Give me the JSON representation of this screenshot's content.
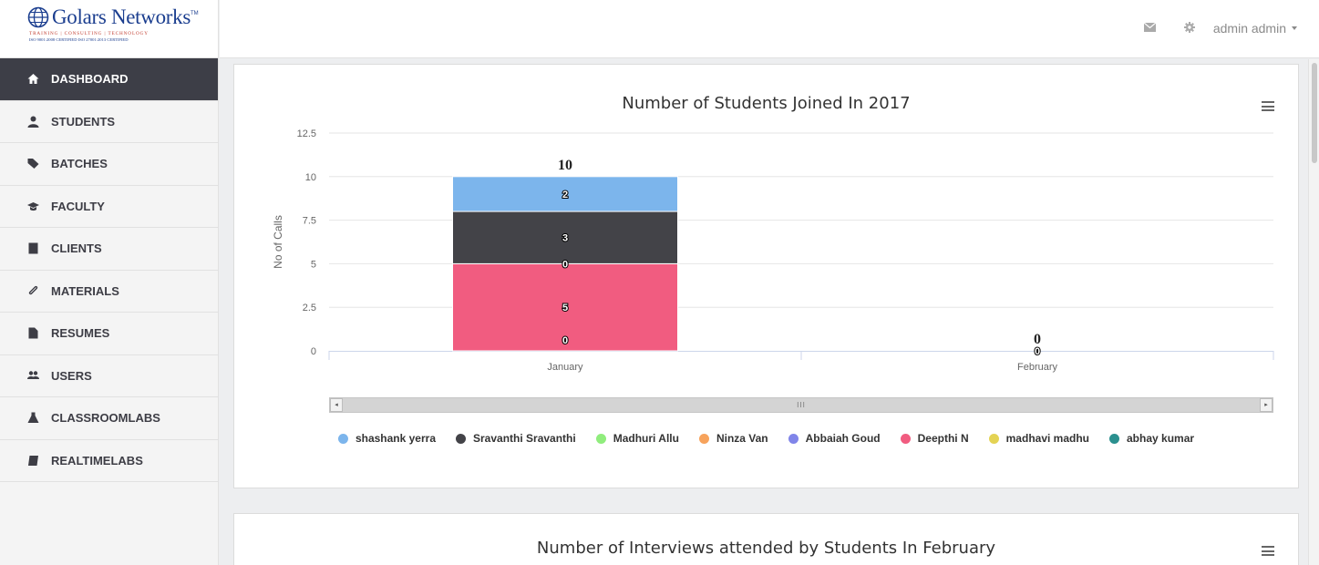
{
  "brand": {
    "name": "Golars Networks",
    "tm": "TM",
    "tagline": "TRAINING | CONSULTING | TECHNOLOGY",
    "iso": "ISO 9001:2008 CERTIFIED    ISO 27001:2013 CERTIFIED"
  },
  "nav": [
    {
      "label": "DASHBOARD",
      "icon": "home-icon",
      "active": true
    },
    {
      "label": "STUDENTS",
      "icon": "user-icon",
      "active": false
    },
    {
      "label": "BATCHES",
      "icon": "tags-icon",
      "active": false
    },
    {
      "label": "FACULTY",
      "icon": "graduation-cap-icon",
      "active": false
    },
    {
      "label": "CLIENTS",
      "icon": "building-icon",
      "active": false
    },
    {
      "label": "MATERIALS",
      "icon": "paperclip-icon",
      "active": false
    },
    {
      "label": "RESUMES",
      "icon": "file-icon",
      "active": false
    },
    {
      "label": "USERS",
      "icon": "users-icon",
      "active": false
    },
    {
      "label": "CLASSROOMLABS",
      "icon": "flask-icon",
      "active": false
    },
    {
      "label": "REALTIMELABS",
      "icon": "book-icon",
      "active": false
    }
  ],
  "topbar": {
    "user": "admin admin",
    "mail_icon": "envelope-icon",
    "settings_icon": "gear-icon"
  },
  "chart1": {
    "title": "Number of Students Joined In 2017",
    "ylabel": "No of Calls",
    "scroll_grip": "III"
  },
  "chart2": {
    "title": "Number of Interviews attended by Students In February"
  },
  "chart_data": {
    "type": "bar",
    "stacked": true,
    "title": "Number of Students Joined In 2017",
    "xlabel": "",
    "ylabel": "No of Calls",
    "categories": [
      "January",
      "February"
    ],
    "ylim": [
      0,
      12.5
    ],
    "yticks": [
      "0",
      "2.5",
      "5",
      "7.5",
      "10",
      "12.5"
    ],
    "totals": [
      10,
      0
    ],
    "legend_position": "bottom",
    "grid": true,
    "series": [
      {
        "name": "shashank yerra",
        "color": "#7cb5ec",
        "values": [
          2,
          0
        ]
      },
      {
        "name": "Sravanthi Sravanthi",
        "color": "#434348",
        "values": [
          3,
          0
        ]
      },
      {
        "name": "Madhuri Allu",
        "color": "#90ed7d",
        "values": [
          0,
          0
        ]
      },
      {
        "name": "Ninza Van",
        "color": "#f7a35c",
        "values": [
          0,
          0
        ]
      },
      {
        "name": "Abbaiah Goud",
        "color": "#8085e9",
        "values": [
          0,
          0
        ]
      },
      {
        "name": "Deepthi N",
        "color": "#f15c80",
        "values": [
          5,
          0
        ]
      },
      {
        "name": "madhavi madhu",
        "color": "#e4d354",
        "values": [
          0,
          0
        ]
      },
      {
        "name": "abhay kumar",
        "color": "#2b908f",
        "values": [
          0,
          0
        ]
      }
    ],
    "shown_value_labels": [
      {
        "series": "shashank yerra",
        "category": "January",
        "label": "2"
      },
      {
        "series": "Sravanthi Sravanthi",
        "category": "January",
        "label": "3"
      },
      {
        "series": "Madhuri Allu",
        "category": "January",
        "label": "0"
      },
      {
        "series": "Deepthi N",
        "category": "January",
        "label": "5"
      },
      {
        "series": "abhay kumar",
        "category": "January",
        "label": "0"
      },
      {
        "series": "Deepthi N",
        "category": "February",
        "label": "0"
      }
    ]
  }
}
